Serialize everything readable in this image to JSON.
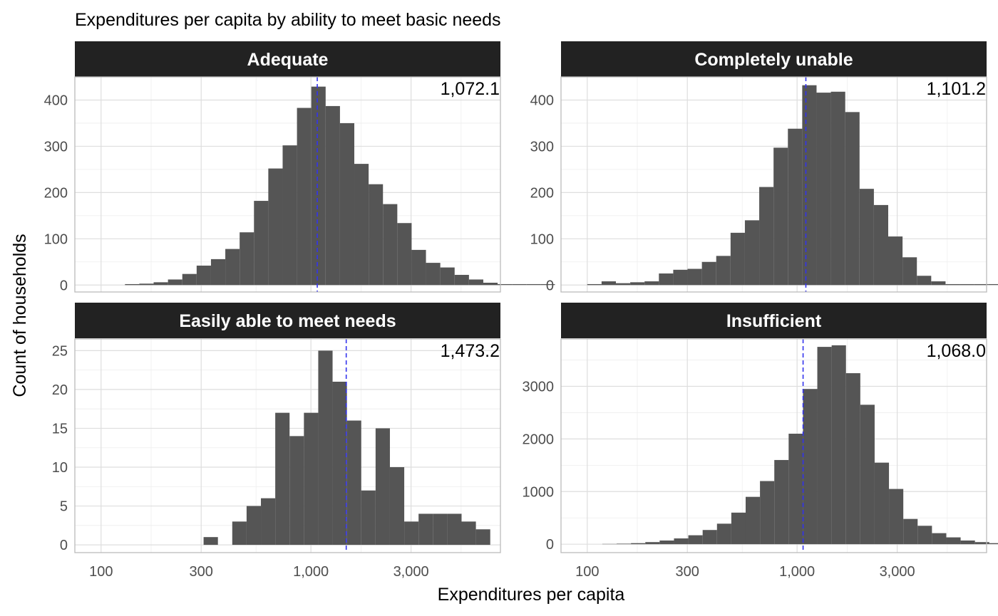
{
  "chart_data": {
    "type": "bar",
    "title": "Expenditures per capita by ability to meet basic needs",
    "xlabel": "Expenditures per capita",
    "ylabel": "Count of households",
    "x_scale": "log10",
    "x_range": [
      75,
      8000
    ],
    "x_ticks": [
      100,
      300,
      1000,
      3000
    ],
    "x_tick_labels": [
      "100",
      "300",
      "1,000",
      "3,000"
    ],
    "bin_width_log10": 0.0683,
    "grid": true,
    "colors": {
      "bar": "#555555",
      "median_line": "#3333ee",
      "strip": "#222222",
      "panel_border": "#bbbbbb"
    },
    "panels": [
      {
        "name": "Adequate",
        "median": 1072.1,
        "median_label": "1,072.1",
        "y_range": [
          -15,
          450
        ],
        "y_ticks": [
          0,
          100,
          200,
          300,
          400
        ],
        "y_tick_labels": [
          "0",
          "100",
          "200",
          "300",
          "400"
        ],
        "bin_start": 130,
        "counts": [
          2,
          3,
          6,
          12,
          24,
          42,
          56,
          78,
          114,
          182,
          252,
          302,
          383,
          429,
          387,
          350,
          262,
          218,
          175,
          134,
          76,
          48,
          38,
          22,
          12,
          5,
          2,
          2,
          2,
          2
        ]
      },
      {
        "name": "Completely unable",
        "median": 1101.2,
        "median_label": "1,101.2",
        "y_range": [
          -15,
          450
        ],
        "y_ticks": [
          0,
          100,
          200,
          300,
          400
        ],
        "y_tick_labels": [
          "0",
          "100",
          "200",
          "300",
          "400"
        ],
        "bin_start": 100,
        "counts": [
          2,
          8,
          4,
          6,
          8,
          25,
          33,
          35,
          50,
          63,
          113,
          140,
          212,
          297,
          338,
          432,
          416,
          418,
          374,
          208,
          173,
          105,
          60,
          20,
          8,
          2,
          2,
          2,
          2,
          2
        ]
      },
      {
        "name": "Easily able to meet needs",
        "median": 1473.2,
        "median_label": "1,473.2",
        "y_range": [
          -1,
          26.5
        ],
        "y_ticks": [
          0,
          5,
          10,
          15,
          20,
          25
        ],
        "y_tick_labels": [
          "0",
          "5",
          "10",
          "15",
          "20",
          "25"
        ],
        "bin_start": 308,
        "counts": [
          1,
          0,
          3,
          5,
          6,
          17,
          14,
          17,
          25,
          21,
          16,
          7,
          15,
          10,
          3,
          4,
          4,
          4,
          3,
          2
        ]
      },
      {
        "name": "Insufficient",
        "median": 1068.0,
        "median_label": "1,068.0",
        "y_range": [
          -160,
          3900
        ],
        "y_ticks": [
          0,
          1000,
          2000,
          3000
        ],
        "y_tick_labels": [
          "0",
          "1000",
          "2000",
          "3000"
        ],
        "bin_start": 118,
        "counts": [
          5,
          10,
          20,
          40,
          70,
          110,
          170,
          270,
          390,
          600,
          900,
          1200,
          1600,
          2100,
          2950,
          3750,
          3780,
          3250,
          2650,
          1550,
          1050,
          480,
          350,
          210,
          130,
          70,
          40,
          20,
          10,
          10
        ]
      }
    ]
  }
}
